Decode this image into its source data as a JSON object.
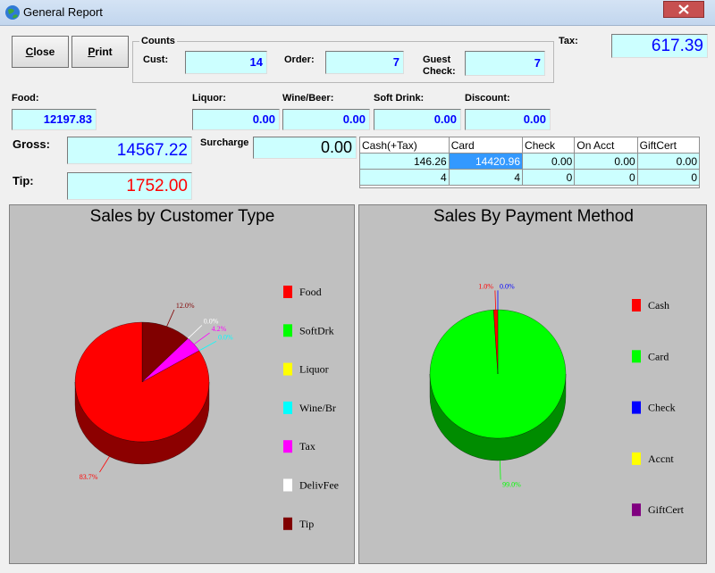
{
  "window": {
    "title": "General Report"
  },
  "buttons": [
    "Close",
    "Print"
  ],
  "counts": {
    "title": "Counts",
    "fields": [
      {
        "label": "Cust:",
        "value": "14"
      },
      {
        "label": "Order:",
        "value": "7"
      },
      {
        "label": "Guest Check:",
        "value": "7"
      }
    ]
  },
  "tax": {
    "label": "Tax:",
    "value": "617.39"
  },
  "fields": [
    {
      "label": "Food:",
      "value": "12197.83"
    },
    {
      "label": "Liquor:",
      "value": "0.00"
    },
    {
      "label": "Wine/Beer:",
      "value": "0.00"
    },
    {
      "label": "Soft Drink:",
      "value": "0.00"
    },
    {
      "label": "Discount:",
      "value": "0.00"
    }
  ],
  "gross": {
    "label": "Gross:",
    "value": "14567.22"
  },
  "tip": {
    "label": "Tip:",
    "value": "1752.00"
  },
  "surcharge": {
    "label": "Surcharge",
    "value": "0.00"
  },
  "payments": {
    "headers": [
      "Cash(+Tax)",
      "Card",
      "Check",
      "On Acct",
      "GiftCert"
    ],
    "rows": [
      [
        "146.26",
        "14420.96",
        "0.00",
        "0.00",
        "0.00"
      ],
      [
        "4",
        "4",
        "0",
        "0",
        "0"
      ]
    ]
  },
  "charts": [
    {
      "type": "pie",
      "title": "Sales by Customer Type",
      "categories": [
        "Food",
        "SoftDrk",
        "Liquor",
        "Wine/Br",
        "Tax",
        "DelivFee",
        "Tip"
      ],
      "colors": [
        "#ff0000",
        "#00ff00",
        "#ffff00",
        "#00ffff",
        "#ff00ff",
        "#ffffff",
        "#800000"
      ],
      "values": [
        83.7,
        0,
        0,
        0,
        4.2,
        0,
        12.0
      ],
      "value_labels": [
        "83.7%",
        null,
        null,
        "0.0%",
        "4.2%",
        "0.0%",
        "12.0%"
      ]
    },
    {
      "type": "pie",
      "title": "Sales By Payment Method",
      "categories": [
        "Cash",
        "Card",
        "Check",
        "Accnt",
        "GiftCert"
      ],
      "colors": [
        "#ff0000",
        "#00ff00",
        "#0000ff",
        "#ffff00",
        "#800080"
      ],
      "values": [
        1.0,
        99.0,
        0,
        0,
        0
      ],
      "value_labels": [
        "1.0%",
        "99.0%",
        "0.0%",
        null,
        null
      ]
    }
  ]
}
